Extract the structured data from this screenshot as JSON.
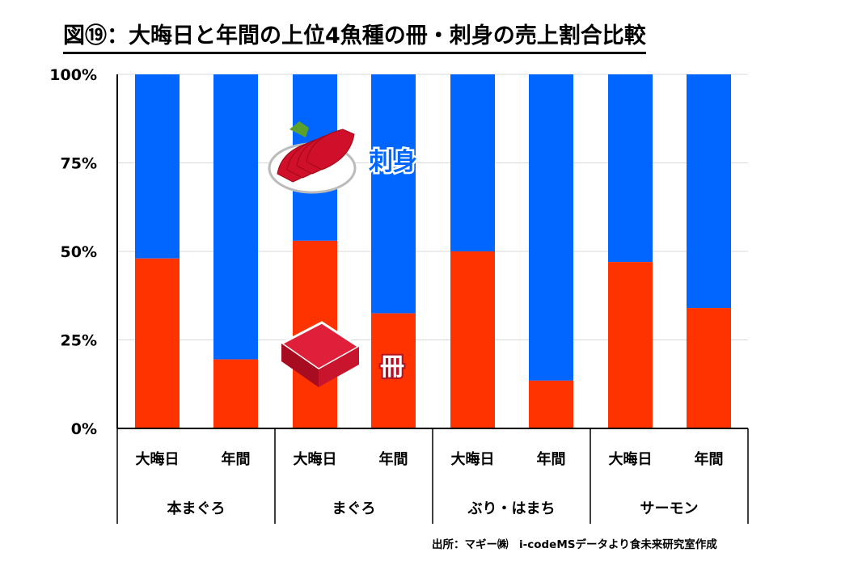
{
  "title": "図⑲：大晦日と年間の上位4魚種の冊・刺身の売上割合比較",
  "source": "出所：マギー㈱　i-codeMSデータより食未来研究室作成",
  "chart_data": {
    "type": "bar",
    "stacked": "100%",
    "title": "図⑲：大晦日と年間の上位4魚種の冊・刺身の売上割合比較",
    "groups": [
      "本まぐろ",
      "まぐろ",
      "ぶり・はまち",
      "サーモン"
    ],
    "subcategories": [
      "大晦日",
      "年間"
    ],
    "series": [
      {
        "name": "冊",
        "color": "#FF3300",
        "values": [
          48,
          19.5,
          53,
          32.5,
          50,
          13.5,
          47,
          34
        ]
      },
      {
        "name": "刺身",
        "color": "#0066FF",
        "values": [
          52,
          80.5,
          47,
          67.5,
          50,
          86.5,
          53,
          66
        ]
      }
    ],
    "ylim": [
      0,
      100
    ],
    "yticks": [
      "0%",
      "25%",
      "50%",
      "75%",
      "100%"
    ],
    "grid": true,
    "legend": [
      "刺身",
      "冊"
    ]
  }
}
